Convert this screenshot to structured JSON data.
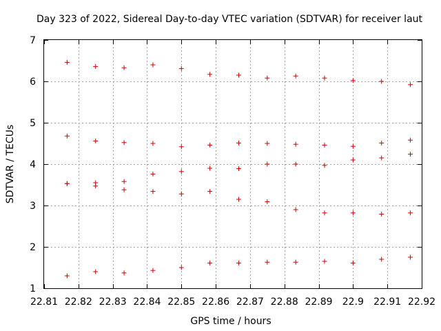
{
  "chart_data": {
    "type": "scatter",
    "title": "Day 323 of 2022, Sidereal Day-to-day VTEC variation (SDTVAR) for receiver laut",
    "xlabel": "GPS time / hours",
    "ylabel": "SDTVAR / TECUs",
    "xlim": [
      22.81,
      22.92
    ],
    "ylim": [
      1,
      7
    ],
    "xticks": [
      "22.81",
      "22.82",
      "22.83",
      "22.84",
      "22.85",
      "22.86",
      "22.87",
      "22.88",
      "22.89",
      "22.9",
      "22.91",
      "22.92"
    ],
    "yticks": [
      "1",
      "2",
      "3",
      "4",
      "5",
      "6",
      "7"
    ],
    "grid": true,
    "marker": "+",
    "color": "#cc0000",
    "x": [
      22.8167,
      22.825,
      22.8333,
      22.8417,
      22.85,
      22.8583,
      22.8667,
      22.875,
      22.8833,
      22.8917,
      22.9,
      22.9083,
      22.9167
    ],
    "series": [
      {
        "values": [
          6.46,
          6.36,
          6.33,
          6.4,
          6.31,
          6.17,
          6.15,
          6.08,
          6.13,
          6.08,
          6.02,
          6.0,
          5.92
        ]
      },
      {
        "values": [
          4.68,
          4.56,
          4.52,
          4.5,
          4.42,
          4.46,
          4.51,
          4.5,
          4.48,
          4.46,
          4.43,
          4.51,
          4.58
        ]
      },
      {
        "values": [
          3.53,
          3.55,
          3.58,
          3.76,
          3.82,
          3.9,
          3.89,
          4.0,
          4.0,
          3.97,
          4.1,
          4.15,
          4.24
        ]
      },
      {
        "values": [
          3.53,
          3.47,
          3.38,
          3.34,
          3.28,
          3.34,
          3.15,
          3.09,
          2.9,
          2.82,
          2.82,
          2.79,
          2.82
        ]
      },
      {
        "values": [
          1.3,
          1.4,
          1.37,
          1.43,
          1.5,
          1.61,
          1.61,
          1.63,
          1.63,
          1.65,
          1.61,
          1.7,
          1.75
        ]
      }
    ]
  }
}
